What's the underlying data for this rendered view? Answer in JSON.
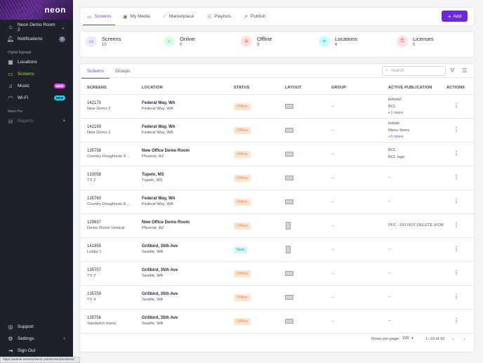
{
  "sidebar": {
    "logo": "neon",
    "workspace": "Neon Demo Room 2",
    "notifications_label": "Notifications",
    "notifications_count": "0",
    "section_signage": "Digital Signage",
    "items": [
      {
        "label": "Locations"
      },
      {
        "label": "Screens"
      },
      {
        "label": "Music",
        "badge": "NEW"
      },
      {
        "label": "Wi-Fi",
        "badge": "NEW"
      }
    ],
    "section_pro": "Neon Pro",
    "reports_label": "Reports",
    "support_label": "Support",
    "settings_label": "Settings",
    "signout_label": "Sign Out",
    "colors": {
      "active": "#a3e635",
      "music_badge": "#d946ef",
      "wifi_badge": "#22d3ee"
    }
  },
  "status_url": "https://admin.neonscreens.com/screen/screens/",
  "topbar": {
    "tabs": [
      {
        "label": "Screens",
        "icon": "monitor-icon"
      },
      {
        "label": "My Media",
        "icon": "image-icon"
      },
      {
        "label": "Marketplace",
        "icon": "wand-icon"
      },
      {
        "label": "Playlists",
        "icon": "playlist-icon"
      },
      {
        "label": "Publish",
        "icon": "share-icon"
      }
    ],
    "add_label": "Add",
    "accent": "#6d28d9"
  },
  "stats": [
    {
      "label": "Screens",
      "value": "10",
      "icon": "monitor-icon",
      "bg": "#ede9fe",
      "fg": "#7c3aed"
    },
    {
      "label": "Online",
      "value": "0",
      "icon": "monitor-check-icon",
      "bg": "#dcfce7",
      "fg": "#22c55e"
    },
    {
      "label": "Offline",
      "value": "9",
      "icon": "monitor-off-icon",
      "bg": "#fee2e2",
      "fg": "#ef4444"
    },
    {
      "label": "Locations",
      "value": "6",
      "icon": "crosshair-icon",
      "bg": "#cffafe",
      "fg": "#06b6d4"
    },
    {
      "label": "Licenses",
      "value": "0",
      "icon": "license-icon",
      "bg": "#fee2e2",
      "fg": "#ef4444"
    }
  ],
  "subtabs": [
    "Screens",
    "Groups"
  ],
  "search_placeholder": "Search",
  "columns": [
    "SCREENS",
    "LOCATION",
    "STATUS",
    "LAYOUT",
    "GROUP",
    "ACTIVE PUBLICATION",
    "ACTIONS"
  ],
  "rows": [
    {
      "id": "142170",
      "name": "New Demo 2",
      "loc": "Federal Way, WA",
      "loc2": "Federal Way, WA",
      "status": "Offline",
      "layout": "landscape",
      "group": "--",
      "pub": [
        "kebab2",
        "BCL"
      ],
      "more": "+1 more"
    },
    {
      "id": "142169",
      "name": "New Demo 1",
      "loc": "Federal Way, WA",
      "loc2": "Federal Way, WA",
      "status": "Offline",
      "layout": "landscape",
      "group": "--",
      "pub": [
        "kebab",
        "Menu Items"
      ],
      "more": "+1 more"
    },
    {
      "id": "135758",
      "name": "Country Doughnuts Scr...",
      "loc": "New Office Demo Room",
      "loc2": "Phoenix, AZ",
      "status": "Offline",
      "layout": "landscape",
      "group": "--",
      "pub": [
        "BCL",
        "BCL logo"
      ],
      "more": ""
    },
    {
      "id": "133058",
      "name": "TV 2",
      "loc": "Tupelo, MS",
      "loc2": "Tupelo, MS",
      "status": "Offline",
      "layout": "landscape",
      "group": "--",
      "pub": [
        "--"
      ],
      "more": ""
    },
    {
      "id": "135760",
      "name": "Country Doughnuts Scr...",
      "loc": "Federal Way, WA",
      "loc2": "Federal Way, WA",
      "status": "Offline",
      "layout": "landscape",
      "group": "--",
      "pub": [
        "--"
      ],
      "more": ""
    },
    {
      "id": "129637",
      "name": "Demo Room Vertical",
      "loc": "New Office Demo Room",
      "loc2": "Phoenix, AZ",
      "status": "Offline",
      "layout": "portrait",
      "group": "--",
      "pub": [
        "PFC - DO NOT DELETE (FOR I"
      ],
      "more": ""
    },
    {
      "id": "141955",
      "name": "Lobby 1",
      "loc": "Grillbird, 35th Ave",
      "loc2": "Seattle, WA",
      "status": "New",
      "layout": "portrait",
      "group": "--",
      "pub": [
        "--"
      ],
      "more": ""
    },
    {
      "id": "135757",
      "name": "TV 2",
      "loc": "Grillbird, 35th Ave",
      "loc2": "Seattle, WA",
      "status": "Offline",
      "layout": "landscape",
      "group": "--",
      "pub": [
        "--"
      ],
      "more": ""
    },
    {
      "id": "135759",
      "name": "TV 4",
      "loc": "Grillbird, 35th Ave",
      "loc2": "Seattle, WA",
      "status": "Offline",
      "layout": "landscape",
      "group": "--",
      "pub": [
        "--"
      ],
      "more": ""
    },
    {
      "id": "135756",
      "name": "Sandwich menu",
      "loc": "Grillbird, 35th Ave",
      "loc2": "Seattle, WA",
      "status": "Offline",
      "layout": "landscape",
      "group": "--",
      "pub": [
        "--"
      ],
      "more": ""
    }
  ],
  "footer": {
    "rows_per_page_label": "Rows per page:",
    "rows_per_page": "100",
    "range": "1–10 of 10"
  }
}
